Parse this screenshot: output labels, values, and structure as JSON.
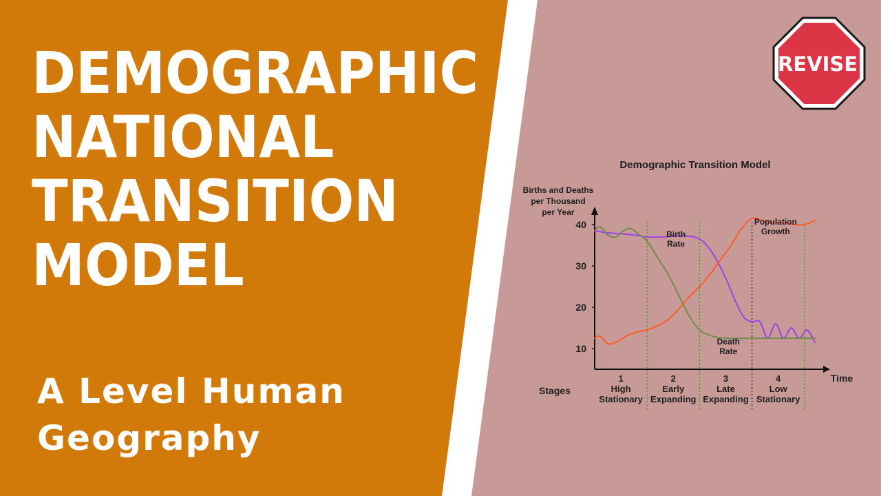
{
  "page": {
    "title_lines": [
      "DEMOGRAPHIC",
      "NATIONAL",
      "TRANSITION",
      "MODEL"
    ],
    "subtitle_lines": [
      "A Level Human",
      "Geography"
    ],
    "badge": "REVISE",
    "colors": {
      "left_panel": "#d17a09",
      "right_panel": "#c79a98",
      "divider": "#ffffff",
      "badge_red": "#dc3545"
    }
  },
  "chart_data": {
    "type": "line",
    "title": "Demographic Transition Model",
    "ylabel_lines": [
      "Births and Deaths",
      "per Thousand",
      "per Year"
    ],
    "xlabel": "Time",
    "yticks": [
      10,
      20,
      30,
      40
    ],
    "ylim": [
      5,
      45
    ],
    "xlim": [
      0,
      4.2
    ],
    "grid": false,
    "stage_header": "Stages",
    "stages": [
      {
        "lines": [
          "1",
          "High",
          "Stationary"
        ]
      },
      {
        "lines": [
          "2",
          "Early",
          "Expanding"
        ]
      },
      {
        "lines": [
          "3",
          "Late",
          "Expanding"
        ]
      },
      {
        "lines": [
          "4",
          "Low",
          "Stationary"
        ]
      }
    ],
    "stage_boundaries": [
      {
        "x": 1.0,
        "style": "green-dotted"
      },
      {
        "x": 2.0,
        "style": "green-dotted"
      },
      {
        "x": 3.0,
        "style": "black-dotted"
      },
      {
        "x": 4.0,
        "style": "green-dotted"
      }
    ],
    "series": [
      {
        "name": "Birth Rate",
        "color": "#a040e8",
        "x": [
          0,
          0.25,
          0.5,
          0.75,
          1.0,
          1.3,
          1.6,
          1.9,
          2.1,
          2.3,
          2.5,
          2.7,
          2.85,
          3.0,
          3.15,
          3.3,
          3.45,
          3.6,
          3.75,
          3.9,
          4.05,
          4.2
        ],
        "y": [
          38.5,
          38,
          37.8,
          37.5,
          37,
          37,
          37.3,
          37,
          35.5,
          32,
          27,
          21,
          17.5,
          16.5,
          16.5,
          12.5,
          16,
          12.5,
          15,
          12.5,
          14.5,
          11.5
        ]
      },
      {
        "name": "Death Rate",
        "color": "#6e8c4e",
        "x": [
          0,
          0.1,
          0.25,
          0.4,
          0.55,
          0.7,
          0.85,
          1.0,
          1.2,
          1.4,
          1.6,
          1.8,
          2.0,
          2.25,
          2.5,
          3.0,
          3.5,
          4.0,
          4.2
        ],
        "y": [
          38.5,
          39.5,
          37.5,
          37,
          38.5,
          39,
          37.5,
          36,
          32,
          28,
          23,
          18,
          14.5,
          13,
          12.5,
          12.5,
          12.5,
          12.5,
          12.5
        ]
      },
      {
        "name": "Population Growth",
        "color": "#ff5a28",
        "x": [
          0,
          0.1,
          0.25,
          0.4,
          0.6,
          0.8,
          1.0,
          1.2,
          1.4,
          1.6,
          1.8,
          2.0,
          2.2,
          2.4,
          2.6,
          2.8,
          3.0,
          3.2,
          3.4,
          3.6,
          3.8,
          4.0,
          4.2
        ],
        "y": [
          12.5,
          13,
          11.2,
          11.5,
          13,
          14,
          14.5,
          15.5,
          17,
          19.5,
          22.5,
          25,
          28,
          31.5,
          35,
          39,
          41.5,
          41,
          40.5,
          40.5,
          40,
          40,
          41
        ]
      }
    ],
    "annotations": [
      {
        "lines": [
          "Birth",
          "Rate"
        ],
        "x": 1.55,
        "y": 37
      },
      {
        "lines": [
          "Death",
          "Rate"
        ],
        "x": 2.55,
        "y": 11
      },
      {
        "lines": [
          "Population",
          "Growth"
        ],
        "x": 3.45,
        "y": 40
      }
    ]
  }
}
